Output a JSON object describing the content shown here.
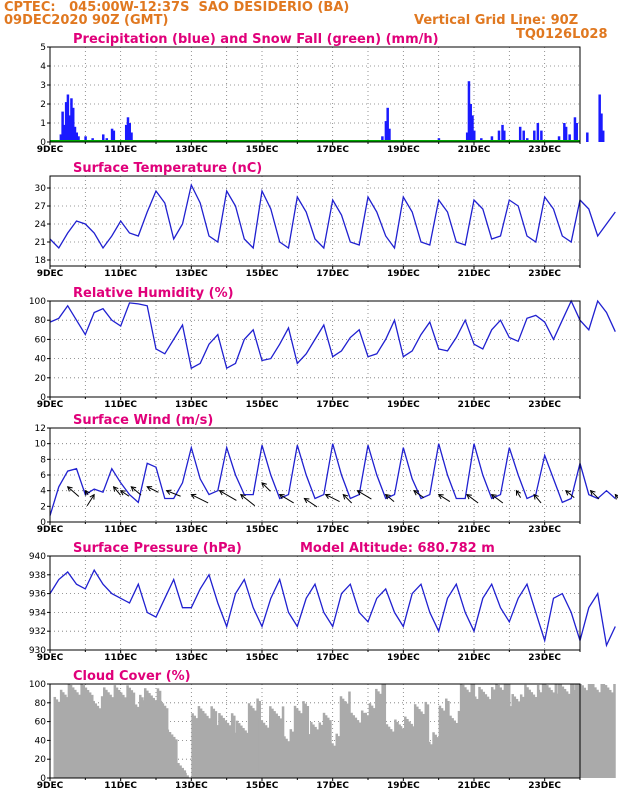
{
  "header": {
    "line1": "CPTEC:   045:00W-12:37S  SAO DESIDERIO (BA)",
    "line2": "09DEC2020 90Z (GMT)",
    "grid_note": "Vertical Grid Line: 90Z",
    "code": "TQ0126L028"
  },
  "colors": {
    "line": "#2020d0",
    "bar": "#1a1aff",
    "snow": "#00aa00",
    "cloud": "#aaaaaa",
    "title": "#e0007a",
    "header": "#e07820"
  },
  "x_ticks": [
    "9DEC",
    "11DEC",
    "13DEC",
    "15DEC",
    "17DEC",
    "19DEC",
    "21DEC",
    "23DEC"
  ],
  "chart_data": [
    {
      "type": "bar",
      "name": "precip",
      "title": "Precipitation (blue) and Snow Fall (green) (mm/h)",
      "ylim": [
        0,
        5
      ],
      "yticks": [
        0,
        1,
        2,
        3,
        4,
        5
      ],
      "bars": [
        [
          0.3,
          0.4
        ],
        [
          0.35,
          1.6
        ],
        [
          0.4,
          0.9
        ],
        [
          0.45,
          2.1
        ],
        [
          0.5,
          2.5
        ],
        [
          0.55,
          1.4
        ],
        [
          0.6,
          2.3
        ],
        [
          0.65,
          1.8
        ],
        [
          0.7,
          0.8
        ],
        [
          0.75,
          0.5
        ],
        [
          0.8,
          0.3
        ],
        [
          1.0,
          0.3
        ],
        [
          1.2,
          0.2
        ],
        [
          1.5,
          0.4
        ],
        [
          1.6,
          0.2
        ],
        [
          1.75,
          0.7
        ],
        [
          1.8,
          0.6
        ],
        [
          2.15,
          0.9
        ],
        [
          2.2,
          1.3
        ],
        [
          2.25,
          1.0
        ],
        [
          2.3,
          0.5
        ],
        [
          2.9,
          0.1
        ],
        [
          4.4,
          0.1
        ],
        [
          5.0,
          0.1
        ],
        [
          5.9,
          0.1
        ],
        [
          7.2,
          0.1
        ],
        [
          7.7,
          0.1
        ],
        [
          8.2,
          0.1
        ],
        [
          8.5,
          0.1
        ],
        [
          9.4,
          0.3
        ],
        [
          9.5,
          1.1
        ],
        [
          9.55,
          1.8
        ],
        [
          9.6,
          0.7
        ],
        [
          10.5,
          0.1
        ],
        [
          11.0,
          0.2
        ],
        [
          11.3,
          0.1
        ],
        [
          11.8,
          0.5
        ],
        [
          11.85,
          3.2
        ],
        [
          11.9,
          2.0
        ],
        [
          11.95,
          1.4
        ],
        [
          12.0,
          0.6
        ],
        [
          12.2,
          0.2
        ],
        [
          12.5,
          0.3
        ],
        [
          12.7,
          0.6
        ],
        [
          12.8,
          0.9
        ],
        [
          12.85,
          0.6
        ],
        [
          13.3,
          0.8
        ],
        [
          13.4,
          0.6
        ],
        [
          13.5,
          0.2
        ],
        [
          13.7,
          0.6
        ],
        [
          13.8,
          1.0
        ],
        [
          13.9,
          0.6
        ],
        [
          14.4,
          0.3
        ],
        [
          14.55,
          1.0
        ],
        [
          14.6,
          0.8
        ],
        [
          14.7,
          0.4
        ],
        [
          14.85,
          1.3
        ],
        [
          14.9,
          1.0
        ],
        [
          15.2,
          0.5
        ],
        [
          15.55,
          2.5
        ],
        [
          15.6,
          1.5
        ],
        [
          15.65,
          0.6
        ]
      ],
      "snow": [
        [
          0.0,
          0.05
        ],
        [
          16.0,
          0.05
        ]
      ]
    },
    {
      "type": "line",
      "name": "temp",
      "title": "Surface Temperature (nC)",
      "ylim": [
        17,
        32
      ],
      "yticks": [
        18,
        21,
        24,
        27,
        30
      ],
      "x": [
        0,
        0.25,
        0.5,
        0.75,
        1.0,
        1.25,
        1.5,
        1.75,
        2.0,
        2.25,
        2.5,
        2.75,
        3.0,
        3.25,
        3.5,
        3.75,
        4.0,
        4.25,
        4.5,
        4.75,
        5.0,
        5.25,
        5.5,
        5.75,
        6.0,
        6.25,
        6.5,
        6.75,
        7.0,
        7.25,
        7.5,
        7.75,
        8.0,
        8.25,
        8.5,
        8.75,
        9.0,
        9.25,
        9.5,
        9.75,
        10.0,
        10.25,
        10.5,
        10.75,
        11.0,
        11.25,
        11.5,
        11.75,
        12.0,
        12.25,
        12.5,
        12.75,
        13.0,
        13.25,
        13.5,
        13.75,
        14.0,
        14.25,
        14.5,
        14.75,
        15.0,
        15.25,
        15.5,
        15.75,
        16.0
      ],
      "values": [
        21.5,
        20.0,
        22.5,
        24.5,
        24.0,
        22.5,
        20.0,
        22.0,
        24.5,
        22.5,
        22.0,
        26.0,
        29.5,
        27.5,
        21.5,
        24.0,
        30.5,
        27.5,
        22.0,
        21.0,
        29.5,
        27.0,
        21.5,
        20.0,
        29.5,
        26.5,
        21.0,
        20.0,
        28.5,
        26.0,
        21.5,
        20.0,
        28.0,
        25.5,
        21.0,
        20.5,
        28.5,
        26.0,
        22.0,
        20.0,
        28.5,
        26.0,
        21.0,
        20.5,
        28.0,
        26.0,
        21.0,
        20.5,
        28.0,
        26.5,
        21.5,
        22.0,
        28.0,
        27.0,
        22.0,
        21.0,
        28.5,
        26.5,
        22.0,
        21.0,
        28.0,
        26.5,
        22.0,
        24.0,
        26.0
      ]
    },
    {
      "type": "line",
      "name": "rh",
      "title": "Relative Humidity (%)",
      "ylim": [
        0,
        100
      ],
      "yticks": [
        0,
        20,
        40,
        60,
        80,
        100
      ],
      "x": [
        0,
        0.25,
        0.5,
        0.75,
        1.0,
        1.25,
        1.5,
        1.75,
        2.0,
        2.25,
        2.5,
        2.75,
        3.0,
        3.25,
        3.5,
        3.75,
        4.0,
        4.25,
        4.5,
        4.75,
        5.0,
        5.25,
        5.5,
        5.75,
        6.0,
        6.25,
        6.5,
        6.75,
        7.0,
        7.25,
        7.5,
        7.75,
        8.0,
        8.25,
        8.5,
        8.75,
        9.0,
        9.25,
        9.5,
        9.75,
        10.0,
        10.25,
        10.5,
        10.75,
        11.0,
        11.25,
        11.5,
        11.75,
        12.0,
        12.25,
        12.5,
        12.75,
        13.0,
        13.25,
        13.5,
        13.75,
        14.0,
        14.25,
        14.5,
        14.75,
        15.0,
        15.25,
        15.5,
        15.75,
        16.0
      ],
      "values": [
        78,
        82,
        95,
        80,
        65,
        88,
        92,
        80,
        74,
        98,
        97,
        95,
        50,
        45,
        60,
        75,
        30,
        35,
        55,
        65,
        30,
        35,
        60,
        70,
        38,
        40,
        55,
        72,
        35,
        45,
        60,
        75,
        42,
        48,
        62,
        70,
        42,
        45,
        60,
        80,
        42,
        48,
        65,
        78,
        50,
        48,
        62,
        80,
        55,
        50,
        70,
        80,
        62,
        58,
        82,
        85,
        78,
        60,
        80,
        100,
        80,
        70,
        100,
        88,
        68
      ]
    },
    {
      "type": "line",
      "name": "wind",
      "title": "Surface Wind (m/s)",
      "ylim": [
        0,
        12
      ],
      "yticks": [
        0,
        2,
        4,
        6,
        8,
        10,
        12
      ],
      "x": [
        0,
        0.25,
        0.5,
        0.75,
        1.0,
        1.25,
        1.5,
        1.75,
        2.0,
        2.25,
        2.5,
        2.75,
        3.0,
        3.25,
        3.5,
        3.75,
        4.0,
        4.25,
        4.5,
        4.75,
        5.0,
        5.25,
        5.5,
        5.75,
        6.0,
        6.25,
        6.5,
        6.75,
        7.0,
        7.25,
        7.5,
        7.75,
        8.0,
        8.25,
        8.5,
        8.75,
        9.0,
        9.25,
        9.5,
        9.75,
        10.0,
        10.25,
        10.5,
        10.75,
        11.0,
        11.25,
        11.5,
        11.75,
        12.0,
        12.25,
        12.5,
        12.75,
        13.0,
        13.25,
        13.5,
        13.75,
        14.0,
        14.25,
        14.5,
        14.75,
        15.0,
        15.25,
        15.5,
        15.75,
        16.0
      ],
      "values": [
        0.8,
        4.5,
        6.5,
        6.8,
        3.5,
        4.2,
        3.8,
        6.8,
        5.0,
        3.5,
        2.5,
        7.5,
        7.0,
        3.0,
        3.0,
        5.0,
        9.5,
        5.5,
        3.5,
        4.0,
        9.5,
        6.0,
        3.5,
        3.5,
        9.8,
        6.0,
        3.0,
        3.5,
        9.8,
        6.0,
        3.0,
        3.5,
        10.0,
        6.0,
        3.0,
        3.5,
        9.8,
        6.0,
        3.0,
        3.5,
        9.5,
        5.5,
        3.0,
        3.5,
        10.0,
        6.0,
        3.0,
        3.0,
        10.0,
        6.0,
        3.0,
        3.5,
        9.5,
        6.0,
        3.0,
        3.5,
        8.5,
        5.5,
        2.5,
        3.0,
        7.5,
        3.5,
        3.0,
        4.0,
        3.0
      ],
      "arrows": [
        [
          0.5,
          4.5,
          0.8,
          0.7
        ],
        [
          1.0,
          4.0,
          0.2,
          0.3
        ],
        [
          1.25,
          3.5,
          -0.5,
          0.8
        ],
        [
          1.8,
          4.5,
          0.5,
          0.6
        ],
        [
          2.0,
          4.0,
          0.6,
          0.4
        ],
        [
          2.3,
          4.5,
          0.7,
          0.6
        ],
        [
          2.75,
          4.5,
          0.8,
          0.4
        ],
        [
          3.3,
          4.0,
          1.0,
          0.4
        ],
        [
          4.0,
          3.5,
          1.2,
          0.6
        ],
        [
          4.8,
          4.0,
          1.2,
          0.7
        ],
        [
          5.4,
          3.5,
          1.0,
          0.8
        ],
        [
          6.0,
          5.0,
          0.6,
          0.6
        ],
        [
          6.5,
          3.5,
          1.0,
          0.6
        ],
        [
          7.2,
          3.0,
          0.9,
          0.6
        ],
        [
          7.8,
          3.5,
          1.0,
          0.5
        ],
        [
          8.3,
          3.5,
          0.6,
          0.6
        ],
        [
          8.7,
          4.0,
          1.0,
          0.6
        ],
        [
          9.5,
          3.5,
          0.6,
          0.5
        ],
        [
          10.3,
          4.0,
          0.7,
          0.5
        ],
        [
          11.0,
          3.5,
          0.8,
          0.5
        ],
        [
          11.8,
          3.5,
          0.8,
          0.6
        ],
        [
          12.5,
          3.5,
          0.8,
          0.6
        ],
        [
          13.2,
          4.0,
          0.3,
          0.5
        ],
        [
          13.7,
          3.5,
          0.5,
          0.6
        ],
        [
          14.6,
          4.0,
          0.6,
          0.5
        ],
        [
          15.3,
          4.0,
          0.6,
          0.6
        ],
        [
          16.0,
          3.5,
          0.5,
          0.6
        ]
      ]
    },
    {
      "type": "line",
      "name": "pres",
      "title": "Surface Pressure (hPa)",
      "extra": "Model Altitude: 680.782 m",
      "ylim": [
        930,
        940
      ],
      "yticks": [
        930,
        932,
        934,
        936,
        938,
        940
      ],
      "x": [
        0,
        0.25,
        0.5,
        0.75,
        1.0,
        1.25,
        1.5,
        1.75,
        2.0,
        2.25,
        2.5,
        2.75,
        3.0,
        3.25,
        3.5,
        3.75,
        4.0,
        4.25,
        4.5,
        4.75,
        5.0,
        5.25,
        5.5,
        5.75,
        6.0,
        6.25,
        6.5,
        6.75,
        7.0,
        7.25,
        7.5,
        7.75,
        8.0,
        8.25,
        8.5,
        8.75,
        9.0,
        9.25,
        9.5,
        9.75,
        10.0,
        10.25,
        10.5,
        10.75,
        11.0,
        11.25,
        11.5,
        11.75,
        12.0,
        12.25,
        12.5,
        12.75,
        13.0,
        13.25,
        13.5,
        13.75,
        14.0,
        14.25,
        14.5,
        14.75,
        15.0,
        15.25,
        15.5,
        15.75,
        16.0
      ],
      "values": [
        936,
        937.5,
        938.3,
        937,
        936.5,
        938.5,
        937,
        936,
        935.5,
        935,
        937,
        934,
        933.5,
        935.5,
        937.5,
        934.5,
        934.5,
        936.5,
        938,
        935,
        932.5,
        936,
        937.5,
        934.5,
        932.5,
        935.5,
        937.5,
        934,
        932.5,
        935.5,
        937,
        934,
        932.5,
        936,
        937,
        934,
        933,
        935.5,
        936.5,
        934,
        932.5,
        936,
        937,
        934,
        932,
        935.5,
        937,
        934,
        932,
        935.5,
        937,
        934.5,
        933,
        935.5,
        937,
        934,
        931,
        935.5,
        936,
        934,
        931,
        934.5,
        936,
        930.5,
        932.5
      ]
    },
    {
      "type": "bar",
      "name": "cloud",
      "title": "Cloud Cover (%)",
      "ylim": [
        0,
        100
      ],
      "yticks": [
        0,
        20,
        40,
        60,
        80,
        100
      ],
      "segments": [
        [
          0.1,
          0.5,
          88
        ],
        [
          0.5,
          1.2,
          95
        ],
        [
          1.2,
          1.5,
          80
        ],
        [
          1.5,
          2.4,
          92
        ],
        [
          2.4,
          2.6,
          82
        ],
        [
          2.6,
          3.1,
          90
        ],
        [
          3.1,
          3.3,
          75
        ],
        [
          3.3,
          3.6,
          48
        ],
        [
          3.6,
          3.8,
          10
        ],
        [
          3.8,
          4.0,
          3
        ],
        [
          4.0,
          4.7,
          70
        ],
        [
          4.7,
          5.2,
          62
        ],
        [
          5.2,
          5.6,
          55
        ],
        [
          5.6,
          5.9,
          78
        ],
        [
          5.9,
          6.2,
          60
        ],
        [
          6.2,
          6.6,
          70
        ],
        [
          6.6,
          6.9,
          45
        ],
        [
          6.9,
          7.3,
          75
        ],
        [
          7.3,
          7.6,
          52
        ],
        [
          7.6,
          7.9,
          62
        ],
        [
          7.9,
          8.2,
          40
        ],
        [
          8.2,
          8.5,
          85
        ],
        [
          8.5,
          8.9,
          65
        ],
        [
          8.9,
          9.2,
          72
        ],
        [
          9.2,
          9.5,
          95
        ],
        [
          9.5,
          9.9,
          55
        ],
        [
          9.9,
          10.3,
          60
        ],
        [
          10.3,
          10.7,
          75
        ],
        [
          10.7,
          11.0,
          42
        ],
        [
          11.0,
          11.3,
          78
        ],
        [
          11.3,
          11.6,
          65
        ],
        [
          11.6,
          12.0,
          98
        ],
        [
          12.0,
          12.6,
          90
        ],
        [
          12.6,
          13.0,
          100
        ],
        [
          13.0,
          13.3,
          82
        ],
        [
          13.3,
          13.8,
          92
        ],
        [
          13.8,
          14.3,
          98
        ],
        [
          14.3,
          14.8,
          95
        ],
        [
          14.8,
          15.4,
          100
        ],
        [
          15.4,
          16.0,
          98
        ]
      ]
    }
  ]
}
